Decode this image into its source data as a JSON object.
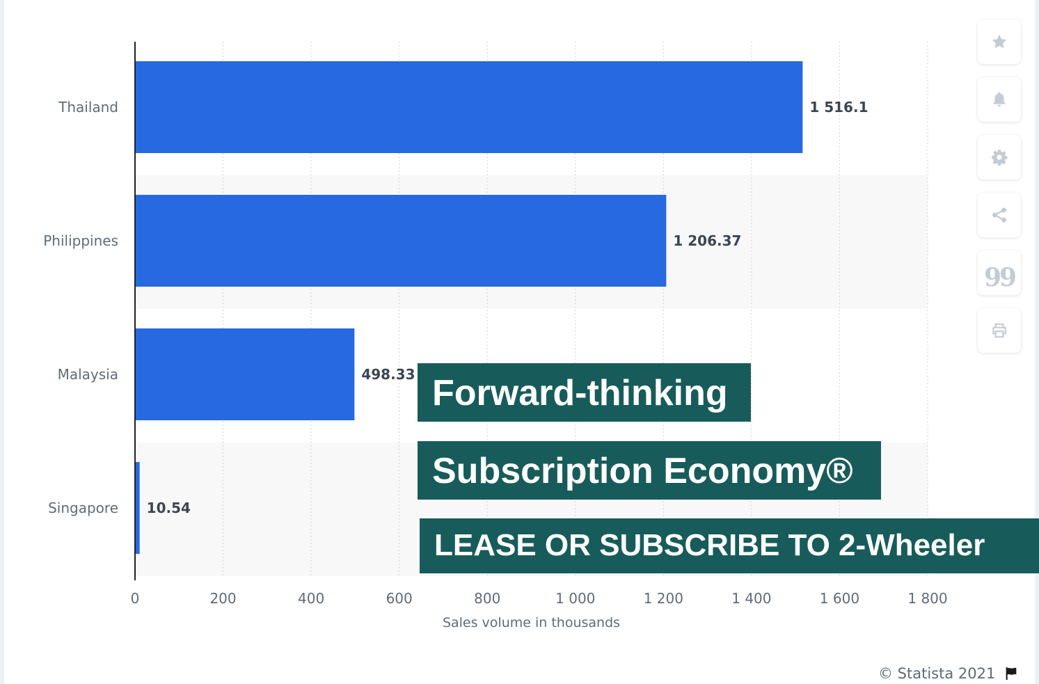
{
  "chart_data": {
    "type": "bar",
    "orientation": "horizontal",
    "categories": [
      "Thailand",
      "Philippines",
      "Malaysia",
      "Singapore"
    ],
    "values": [
      1516.1,
      1206.37,
      498.33,
      10.54
    ],
    "value_labels": [
      "1 516.1",
      "1 206.37",
      "498.33",
      "10.54"
    ],
    "xlabel": "Sales volume in thousands",
    "ylabel": "",
    "xlim": [
      0,
      1800
    ],
    "xticks": [
      0,
      200,
      400,
      600,
      800,
      1000,
      1200,
      1400,
      1600,
      1800
    ],
    "xtick_labels": [
      "0",
      "200",
      "400",
      "600",
      "800",
      "1 000",
      "1 200",
      "1 400",
      "1 600",
      "1 800"
    ],
    "grid": true,
    "bar_color": "#2669e0"
  },
  "toolbar": {
    "buttons": [
      {
        "name": "star-icon"
      },
      {
        "name": "bell-icon"
      },
      {
        "name": "gear-icon"
      },
      {
        "name": "share-icon"
      },
      {
        "name": "quote-icon",
        "glyph": "99"
      },
      {
        "name": "print-icon"
      }
    ]
  },
  "banners": [
    "Forward-thinking",
    "Subscription Economy®",
    "LEASE OR SUBSCRIBE TO 2-Wheeler"
  ],
  "footer": {
    "credit": "© Statista 2021"
  },
  "colors": {
    "banner_bg": "#175c5a",
    "bar": "#2669e0",
    "band": "#f8f8f8",
    "axis_text": "#606b78"
  }
}
